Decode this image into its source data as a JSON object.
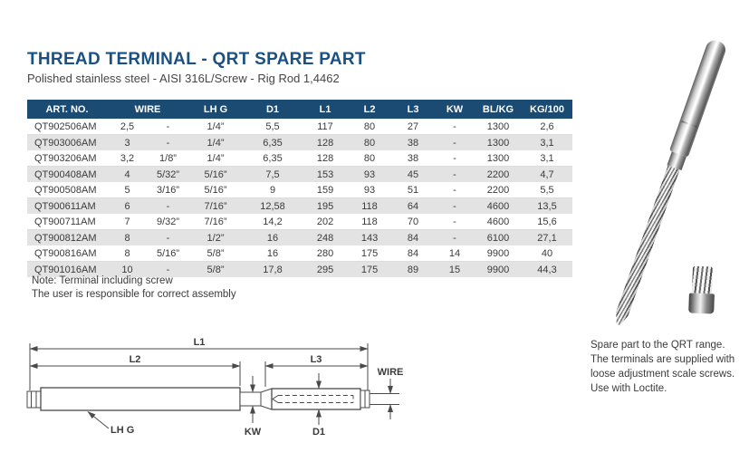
{
  "page": {
    "title": "THREAD TERMINAL - QRT SPARE PART",
    "subtitle": "Polished stainless steel - AISI 316L/Screw - Rig Rod 1,4462"
  },
  "colors": {
    "header_navy": "#1b4a73",
    "title_blue": "#1a5083",
    "row_alt_gray": "#e3e3e3"
  },
  "table": {
    "headers": [
      {
        "label": "ART. NO.",
        "colspan": 1
      },
      {
        "label": "WIRE",
        "colspan": 2
      },
      {
        "label": "LH G",
        "colspan": 1
      },
      {
        "label": "D1",
        "colspan": 1
      },
      {
        "label": "L1",
        "colspan": 1
      },
      {
        "label": "L2",
        "colspan": 1
      },
      {
        "label": "L3",
        "colspan": 1
      },
      {
        "label": "KW",
        "colspan": 1
      },
      {
        "label": "BL/KG",
        "colspan": 1
      },
      {
        "label": "KG/100",
        "colspan": 1
      }
    ],
    "rows": [
      [
        "QT902506AM",
        "2,5",
        "-",
        "1/4”",
        "5,5",
        "117",
        "80",
        "27",
        "-",
        "1300",
        "2,6"
      ],
      [
        "QT903006AM",
        "3",
        "-",
        "1/4”",
        "6,35",
        "128",
        "80",
        "38",
        "-",
        "1300",
        "3,1"
      ],
      [
        "QT903206AM",
        "3,2",
        "1/8”",
        "1/4”",
        "6,35",
        "128",
        "80",
        "38",
        "-",
        "1300",
        "3,1"
      ],
      [
        "QT900408AM",
        "4",
        "5/32”",
        "5/16”",
        "7,5",
        "153",
        "93",
        "45",
        "-",
        "2200",
        "4,7"
      ],
      [
        "QT900508AM",
        "5",
        "3/16”",
        "5/16”",
        "9",
        "159",
        "93",
        "51",
        "-",
        "2200",
        "5,5"
      ],
      [
        "QT900611AM",
        "6",
        "-",
        "7/16”",
        "12,58",
        "195",
        "118",
        "64",
        "-",
        "4600",
        "13,5"
      ],
      [
        "QT900711AM",
        "7",
        "9/32”",
        "7/16”",
        "14,2",
        "202",
        "118",
        "70",
        "-",
        "4600",
        "15,6"
      ],
      [
        "QT900812AM",
        "8",
        "-",
        "1/2”",
        "16",
        "248",
        "143",
        "84",
        "-",
        "6100",
        "27,1"
      ],
      [
        "QT900816AM",
        "8",
        "5/16”",
        "5/8”",
        "16",
        "280",
        "175",
        "84",
        "14",
        "9900",
        "40"
      ],
      [
        "QT901016AM",
        "10",
        "-",
        "5/8”",
        "17,8",
        "295",
        "175",
        "89",
        "15",
        "9900",
        "44,3"
      ]
    ]
  },
  "note": {
    "line1": "Note: Terminal including screw",
    "line2": "The user is responsible for correct assembly"
  },
  "drawing": {
    "labels": {
      "l1": "L1",
      "l2": "L2",
      "l3": "L3",
      "wire": "WIRE",
      "kw": "KW",
      "d1": "D1",
      "lh_g": "LH G"
    }
  },
  "side_text": {
    "line1": "Spare part to the QRT range.",
    "line2": "The terminals are supplied with",
    "line3": "loose adjustment scale screws.",
    "line4": "Use with Loctite."
  }
}
